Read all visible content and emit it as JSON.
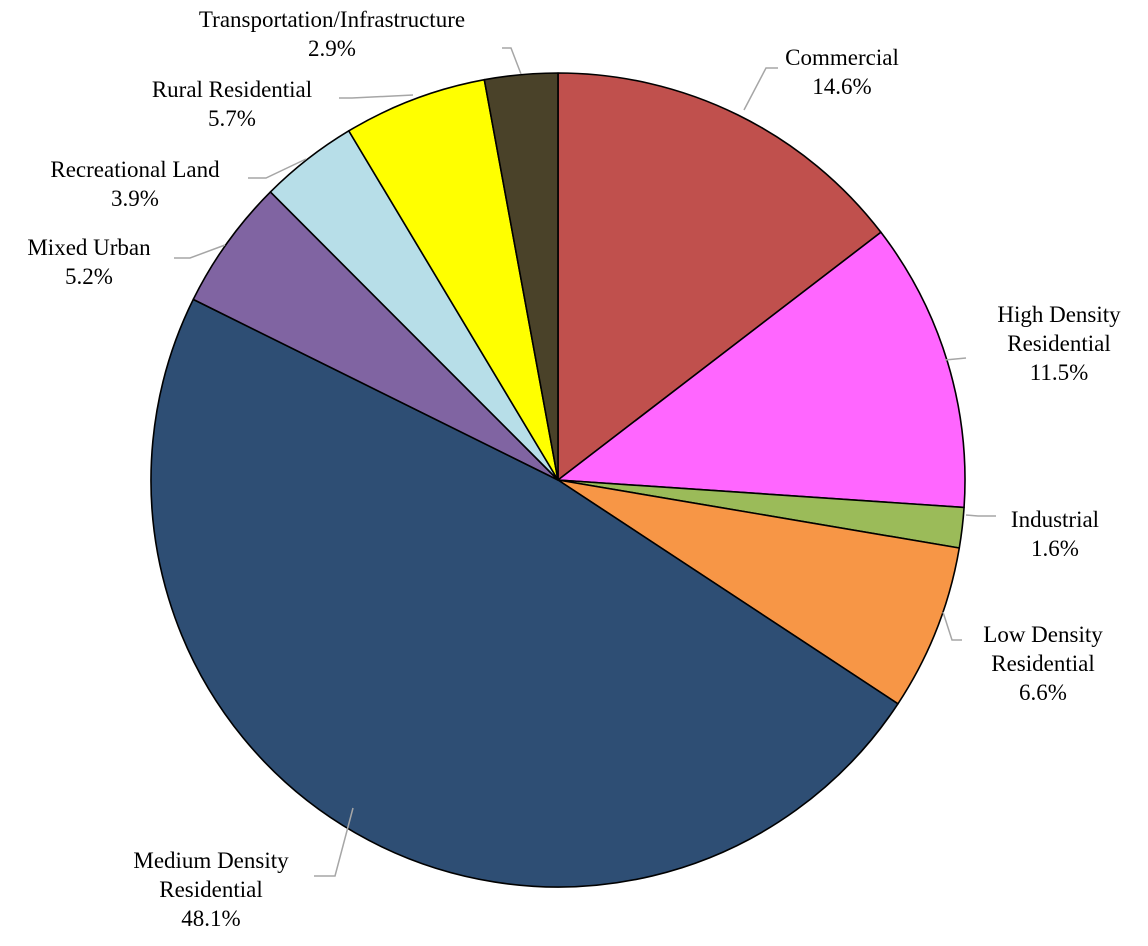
{
  "chart_data": {
    "type": "pie",
    "title": "",
    "legend": "none",
    "start": "12 o'clock, clockwise",
    "slices": [
      {
        "name": "Commercial",
        "label_lines": [
          "Commercial",
          "14.6%"
        ],
        "value": 14.6,
        "value_label": "14.6%",
        "color": "#C0504D"
      },
      {
        "name": "High Density Residential",
        "label_lines": [
          "High Density",
          "Residential",
          "11.5%"
        ],
        "value": 11.5,
        "value_label": "11.5%",
        "color": "#FF66FF"
      },
      {
        "name": "Industrial",
        "label_lines": [
          "Industrial",
          "1.6%"
        ],
        "value": 1.6,
        "value_label": "1.6%",
        "color": "#9BBB59"
      },
      {
        "name": "Low Density Residential",
        "label_lines": [
          "Low Density",
          "Residential",
          "6.6%"
        ],
        "value": 6.6,
        "value_label": "6.6%",
        "color": "#F79646"
      },
      {
        "name": "Medium Density Residential",
        "label_lines": [
          "Medium Density",
          "Residential",
          "48.1%"
        ],
        "value": 48.1,
        "value_label": "48.1%",
        "color": "#2E4E74"
      },
      {
        "name": "Mixed Urban",
        "label_lines": [
          "Mixed Urban",
          "5.2%"
        ],
        "value": 5.2,
        "value_label": "5.2%",
        "color": "#8064A2"
      },
      {
        "name": "Recreational Land",
        "label_lines": [
          "Recreational Land",
          "3.9%"
        ],
        "value": 3.9,
        "value_label": "3.9%",
        "color": "#B7DEE8"
      },
      {
        "name": "Rural Residential",
        "label_lines": [
          "Rural Residential",
          "5.7%"
        ],
        "value": 5.7,
        "value_label": "5.7%",
        "color": "#FFFF00"
      },
      {
        "name": "Transportation/Infrastructure",
        "label_lines": [
          "Transportation/Infrastructure",
          "2.9%"
        ],
        "value": 2.9,
        "value_label": "2.9%",
        "color": "#4A4229"
      }
    ]
  }
}
